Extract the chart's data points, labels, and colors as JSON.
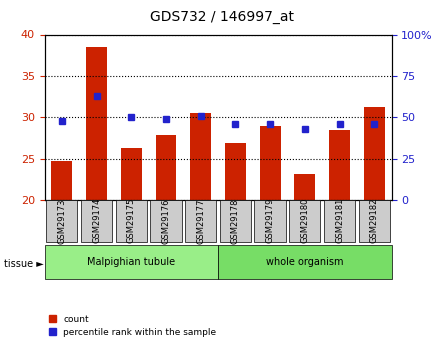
{
  "title": "GDS732 / 146997_at",
  "categories": [
    "GSM29173",
    "GSM29174",
    "GSM29175",
    "GSM29176",
    "GSM29177",
    "GSM29178",
    "GSM29179",
    "GSM29180",
    "GSM29181",
    "GSM29182"
  ],
  "counts": [
    24.7,
    38.5,
    26.3,
    27.9,
    30.5,
    26.9,
    29.0,
    23.2,
    28.5,
    31.3
  ],
  "percentiles": [
    48,
    63,
    50,
    49,
    51,
    46,
    46,
    43,
    46,
    46
  ],
  "ylim_left": [
    20,
    40
  ],
  "ylim_right": [
    0,
    100
  ],
  "yticks_left": [
    20,
    25,
    30,
    35,
    40
  ],
  "yticks_right": [
    0,
    25,
    50,
    75,
    100
  ],
  "bar_color": "#CC2200",
  "dot_color": "#2222CC",
  "bar_width": 0.6,
  "tissue_groups": [
    {
      "label": "Malpighian tubule",
      "start": 0,
      "end": 5,
      "color": "#99EE88"
    },
    {
      "label": "whole organism",
      "start": 5,
      "end": 10,
      "color": "#77DD66"
    }
  ],
  "legend_items": [
    {
      "label": "count",
      "color": "#CC2200"
    },
    {
      "label": "percentile rank within the sample",
      "color": "#2222CC"
    }
  ],
  "grid_color": "#000000",
  "tick_label_color_left": "#CC2200",
  "tick_label_color_right": "#2222CC",
  "bg_plot": "#FFFFFF",
  "bg_tick": "#CCCCCC"
}
